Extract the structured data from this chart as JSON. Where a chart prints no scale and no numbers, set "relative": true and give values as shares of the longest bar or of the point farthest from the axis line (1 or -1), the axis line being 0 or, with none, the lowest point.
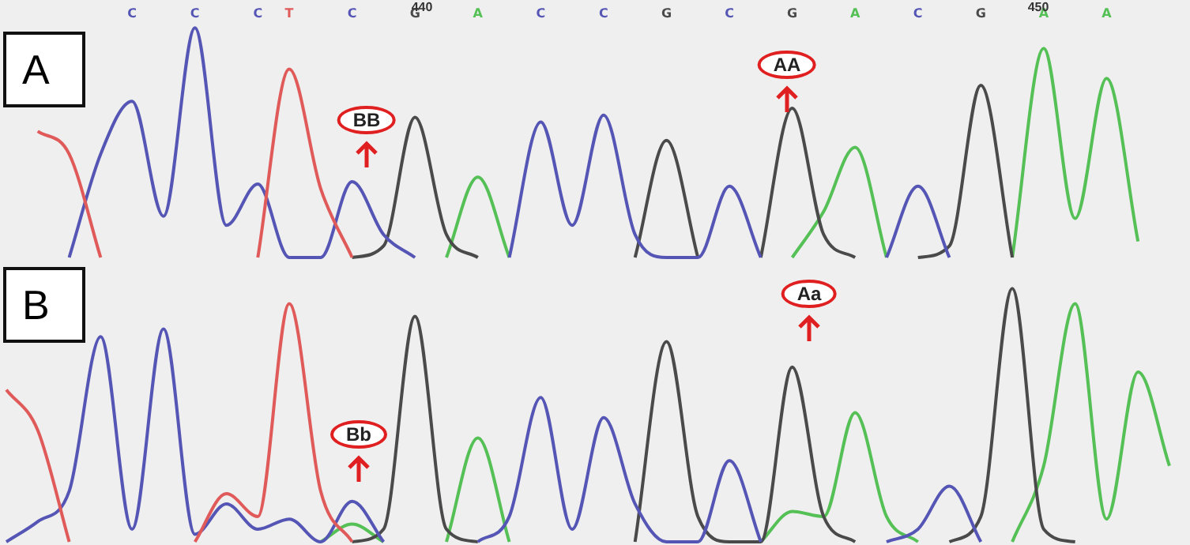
{
  "chart_data": [
    {
      "type": "line",
      "title": "A",
      "relative": true,
      "categories": [
        null,
        null,
        null,
        null,
        "C",
        null,
        "C",
        null,
        "C",
        "T",
        null,
        "C",
        null,
        "G",
        null,
        "A",
        null,
        "C",
        null,
        "C",
        null,
        "G",
        null,
        "C",
        null,
        "G",
        null,
        "A",
        null,
        "C",
        null,
        "G",
        null,
        "A",
        null,
        "A",
        null,
        null
      ],
      "series": [
        {
          "color": "#e05a5a",
          "values": [
            null,
            0.55,
            0.45,
            0,
            null,
            null,
            null,
            null,
            0,
            0.82,
            0.3,
            0,
            null,
            null,
            null,
            null,
            null,
            null,
            null,
            null,
            null,
            null,
            null,
            null,
            null,
            null,
            null,
            null,
            null,
            null,
            null,
            null,
            null,
            null,
            null,
            null,
            null,
            null
          ]
        },
        {
          "color": "#5555b5",
          "values": [
            null,
            null,
            0,
            0.45,
            0.68,
            0.18,
            1,
            0.14,
            0.32,
            0,
            0,
            0.33,
            0.1,
            0,
            null,
            null,
            0,
            0.59,
            0.14,
            0.62,
            0.1,
            0,
            0,
            0.31,
            0,
            null,
            null,
            null,
            0,
            0.31,
            0,
            null,
            null,
            null,
            null,
            null,
            null,
            null
          ]
        },
        {
          "color": "#4a4a4a",
          "values": [
            null,
            null,
            null,
            null,
            null,
            null,
            null,
            null,
            null,
            null,
            null,
            0,
            0.05,
            0.61,
            0.1,
            0,
            null,
            null,
            null,
            null,
            0,
            0.51,
            0,
            null,
            0,
            0.65,
            0.1,
            0,
            null,
            0,
            0.05,
            0.75,
            0,
            null,
            null,
            null,
            null,
            null
          ]
        },
        {
          "color": "#55c055",
          "values": [
            null,
            null,
            null,
            null,
            null,
            null,
            null,
            null,
            null,
            null,
            null,
            null,
            null,
            null,
            0,
            0.35,
            0,
            null,
            null,
            null,
            null,
            null,
            null,
            null,
            null,
            0,
            0.2,
            0.48,
            0,
            null,
            null,
            null,
            0,
            0.91,
            0.17,
            0.78,
            0.07,
            null
          ]
        }
      ],
      "annotations": [
        "440",
        "BB",
        "AA",
        "450"
      ]
    },
    {
      "type": "line",
      "title": "B",
      "relative": true,
      "categories": [
        null,
        null,
        null,
        null,
        null,
        null,
        null,
        null,
        null,
        null,
        null,
        null,
        null,
        null,
        null,
        null,
        null,
        null,
        null,
        null,
        null,
        null,
        null,
        null,
        null,
        null,
        null,
        null,
        null,
        null,
        null,
        null,
        null,
        null,
        null,
        null,
        null,
        null
      ],
      "series": [
        {
          "color": "#e05a5a",
          "values": [
            0.6,
            0.44,
            0,
            null,
            null,
            null,
            0,
            0.19,
            0.1,
            0.94,
            0.2,
            0,
            null,
            null,
            null,
            null,
            null,
            null,
            null,
            null,
            null,
            null,
            null,
            null,
            null,
            null,
            null,
            null,
            null,
            null,
            null,
            null,
            null,
            null,
            null,
            null,
            null,
            null
          ]
        },
        {
          "color": "#5555b5",
          "values": [
            0,
            0.08,
            0.2,
            0.81,
            0.05,
            0.84,
            0.03,
            0.15,
            0.05,
            0.09,
            0,
            0.16,
            0,
            null,
            null,
            0,
            0.1,
            0.57,
            0.05,
            0.49,
            0.15,
            0,
            0,
            0.32,
            0,
            null,
            null,
            null,
            0,
            0.05,
            0.22,
            0,
            null,
            null,
            null,
            null,
            null,
            null
          ]
        },
        {
          "color": "#4a4a4a",
          "values": [
            null,
            null,
            null,
            null,
            null,
            null,
            null,
            null,
            null,
            null,
            null,
            0,
            0.05,
            0.89,
            0.05,
            0,
            null,
            null,
            null,
            null,
            0,
            0.79,
            0.1,
            0,
            0,
            0.69,
            0.1,
            0,
            null,
            null,
            0,
            0.1,
            1,
            0.05,
            0,
            null,
            null,
            null
          ]
        },
        {
          "color": "#55c055",
          "values": [
            null,
            null,
            null,
            null,
            null,
            null,
            null,
            null,
            null,
            null,
            0,
            0.07,
            0,
            null,
            0,
            0.41,
            0,
            null,
            null,
            null,
            null,
            null,
            null,
            null,
            0,
            0.12,
            0.1,
            0.51,
            0.1,
            0,
            null,
            null,
            0,
            0.3,
            0.94,
            0.09,
            0.67,
            0.3
          ]
        }
      ],
      "annotations": [
        "Bb",
        "Aa"
      ]
    }
  ]
}
